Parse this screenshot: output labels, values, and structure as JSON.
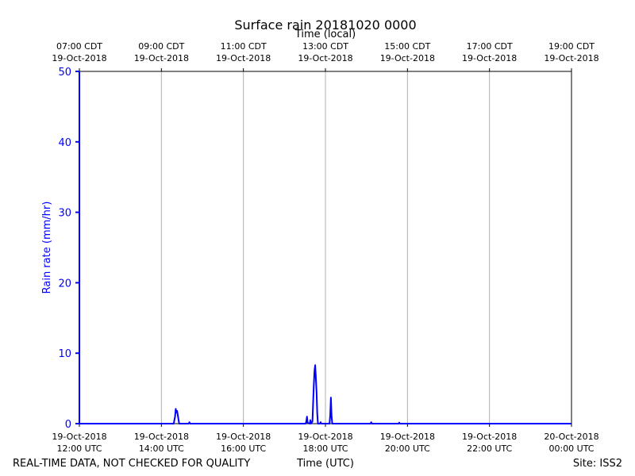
{
  "chart_data": {
    "type": "line",
    "title": "Surface rain 20181020 0000",
    "xlabel": "Time (UTC)",
    "x2label": "Time (local)",
    "ylabel": "Rain rate (mm/hr)",
    "ylim": [
      0,
      50
    ],
    "yticks": [
      0,
      10,
      20,
      30,
      40,
      50
    ],
    "xlim": [
      "2018-10-19 12:00 UTC",
      "2018-10-20 00:00 UTC"
    ],
    "grid": "vertical",
    "xticks_utc": [
      {
        "time": "2018-10-19 12:00",
        "date": "19-Oct-2018",
        "label": "12:00 UTC"
      },
      {
        "time": "2018-10-19 14:00",
        "date": "19-Oct-2018",
        "label": "14:00 UTC"
      },
      {
        "time": "2018-10-19 16:00",
        "date": "19-Oct-2018",
        "label": "16:00 UTC"
      },
      {
        "time": "2018-10-19 18:00",
        "date": "19-Oct-2018",
        "label": "18:00 UTC"
      },
      {
        "time": "2018-10-19 20:00",
        "date": "19-Oct-2018",
        "label": "20:00 UTC"
      },
      {
        "time": "2018-10-19 22:00",
        "date": "19-Oct-2018",
        "label": "22:00 UTC"
      },
      {
        "time": "2018-10-20 00:00",
        "date": "20-Oct-2018",
        "label": "00:00 UTC"
      }
    ],
    "xticks_local": [
      {
        "label": "07:00 CDT",
        "date": "19-Oct-2018"
      },
      {
        "label": "09:00 CDT",
        "date": "19-Oct-2018"
      },
      {
        "label": "11:00 CDT",
        "date": "19-Oct-2018"
      },
      {
        "label": "13:00 CDT",
        "date": "19-Oct-2018"
      },
      {
        "label": "15:00 CDT",
        "date": "19-Oct-2018"
      },
      {
        "label": "17:00 CDT",
        "date": "19-Oct-2018"
      },
      {
        "label": "19:00 CDT",
        "date": "19-Oct-2018"
      }
    ],
    "series": [
      {
        "color": "#0000ff",
        "points": [
          {
            "t": "2018-10-19 12:00",
            "v": 50.0
          },
          {
            "t": "2018-10-19 12:00",
            "v": 0
          },
          {
            "t": "2018-10-19 14:18",
            "v": 0
          },
          {
            "t": "2018-10-19 14:20",
            "v": 1.0
          },
          {
            "t": "2018-10-19 14:21",
            "v": 2.1
          },
          {
            "t": "2018-10-19 14:22",
            "v": 1.6
          },
          {
            "t": "2018-10-19 14:23",
            "v": 1.8
          },
          {
            "t": "2018-10-19 14:25",
            "v": 0.6
          },
          {
            "t": "2018-10-19 14:26",
            "v": 0
          },
          {
            "t": "2018-10-19 14:40",
            "v": 0
          },
          {
            "t": "2018-10-19 14:41",
            "v": 0.2
          },
          {
            "t": "2018-10-19 14:42",
            "v": 0
          },
          {
            "t": "2018-10-19 17:31",
            "v": 0
          },
          {
            "t": "2018-10-19 17:32",
            "v": 0.3
          },
          {
            "t": "2018-10-19 17:33",
            "v": 1.0
          },
          {
            "t": "2018-10-19 17:34",
            "v": 0.1
          },
          {
            "t": "2018-10-19 17:37",
            "v": 0
          },
          {
            "t": "2018-10-19 17:38",
            "v": 0.5
          },
          {
            "t": "2018-10-19 17:39",
            "v": 0
          },
          {
            "t": "2018-10-19 17:41",
            "v": 0.3
          },
          {
            "t": "2018-10-19 17:42",
            "v": 3.0
          },
          {
            "t": "2018-10-19 17:43",
            "v": 5.5
          },
          {
            "t": "2018-10-19 17:44",
            "v": 7.5
          },
          {
            "t": "2018-10-19 17:45",
            "v": 8.3
          },
          {
            "t": "2018-10-19 17:46",
            "v": 6.5
          },
          {
            "t": "2018-10-19 17:47",
            "v": 4.5
          },
          {
            "t": "2018-10-19 17:48",
            "v": 1.5
          },
          {
            "t": "2018-10-19 17:49",
            "v": 0
          },
          {
            "t": "2018-10-19 17:52",
            "v": 0
          },
          {
            "t": "2018-10-19 17:53",
            "v": 0.2
          },
          {
            "t": "2018-10-19 17:54",
            "v": 0
          },
          {
            "t": "2018-10-19 18:06",
            "v": 0
          },
          {
            "t": "2018-10-19 18:07",
            "v": 1.2
          },
          {
            "t": "2018-10-19 18:08",
            "v": 3.7
          },
          {
            "t": "2018-10-19 18:09",
            "v": 1.0
          },
          {
            "t": "2018-10-19 18:10",
            "v": 0
          },
          {
            "t": "2018-10-19 19:06",
            "v": 0
          },
          {
            "t": "2018-10-19 19:07",
            "v": 0.2
          },
          {
            "t": "2018-10-19 19:08",
            "v": 0
          },
          {
            "t": "2018-10-19 19:47",
            "v": 0
          },
          {
            "t": "2018-10-19 19:48",
            "v": 0.15
          },
          {
            "t": "2018-10-19 19:49",
            "v": 0
          },
          {
            "t": "2018-10-20 00:00",
            "v": 0
          }
        ]
      }
    ]
  },
  "footer": {
    "left": "REAL-TIME DATA, NOT CHECKED FOR QUALITY",
    "right": "Site: ISS2"
  },
  "colors": {
    "series": "#0000ff",
    "y_axis": "#0000ff",
    "grid": "#b0b0b0"
  }
}
